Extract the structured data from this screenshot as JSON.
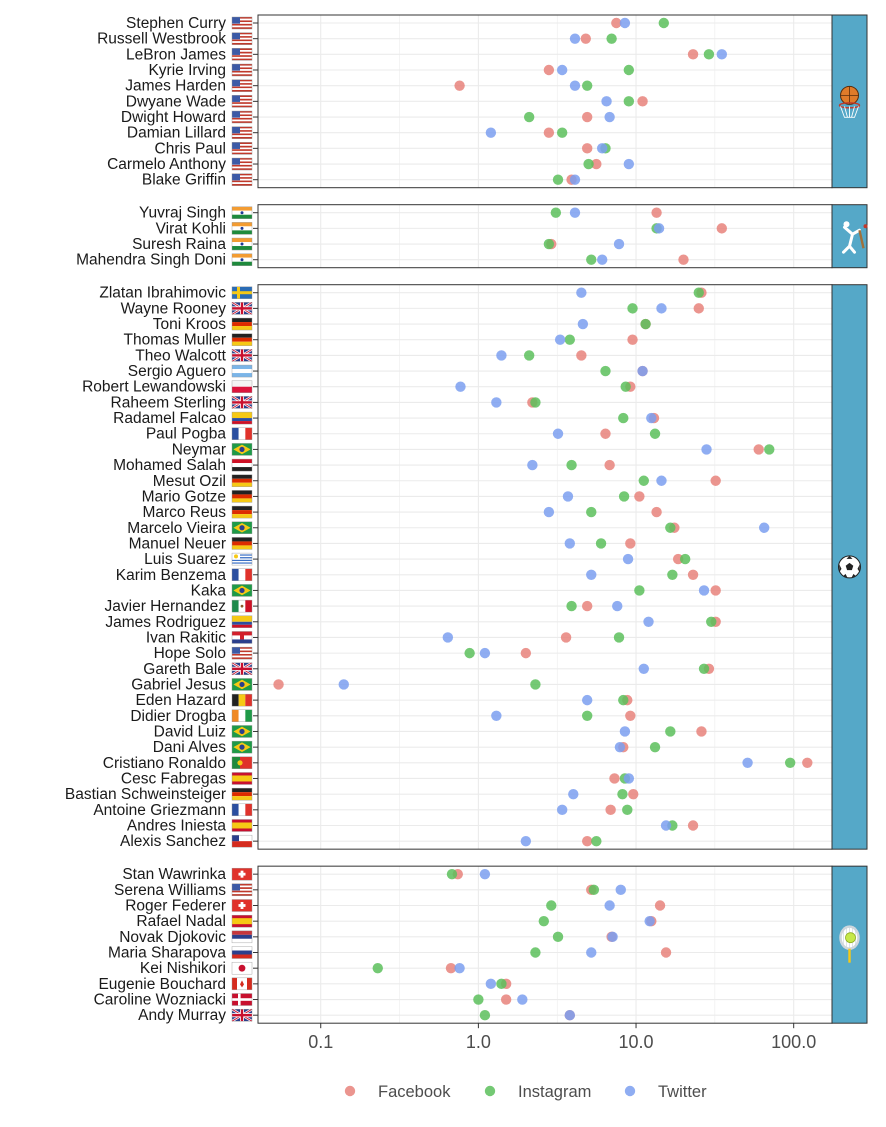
{
  "chart_data": {
    "type": "scatter",
    "x_scale": "log",
    "x_range": [
      0.04,
      175
    ],
    "x_ticks": [
      {
        "value": 0.1,
        "label": "0.1"
      },
      {
        "value": 1,
        "label": "1.0"
      },
      {
        "value": 10,
        "label": "10.0"
      },
      {
        "value": 100,
        "label": "100.0"
      }
    ],
    "legend_position": "bottom",
    "grid": true,
    "series": [
      {
        "name": "Facebook",
        "color": "#e8837b"
      },
      {
        "name": "Instagram",
        "color": "#5cbf5c"
      },
      {
        "name": "Twitter",
        "color": "#7b9ff0"
      }
    ],
    "panels": [
      {
        "sport": "basketball",
        "strip_icon": "basketball-icon",
        "athletes": [
          {
            "name": "Stephen Curry",
            "flag": "us",
            "values": [
              7.5,
              15,
              8.5
            ]
          },
          {
            "name": "Russell Westbrook",
            "flag": "us",
            "values": [
              4.8,
              7,
              4.1
            ]
          },
          {
            "name": "LeBron James",
            "flag": "us",
            "values": [
              23,
              29,
              35
            ]
          },
          {
            "name": "Kyrie Irving",
            "flag": "us",
            "values": [
              2.8,
              9,
              3.4
            ]
          },
          {
            "name": "James Harden",
            "flag": "us",
            "values": [
              0.76,
              4.9,
              4.1
            ]
          },
          {
            "name": "Dwyane Wade",
            "flag": "us",
            "values": [
              11,
              9,
              6.5
            ]
          },
          {
            "name": "Dwight Howard",
            "flag": "us",
            "values": [
              4.9,
              2.1,
              6.8
            ]
          },
          {
            "name": "Damian Lillard",
            "flag": "us",
            "values": [
              2.8,
              3.4,
              1.2
            ]
          },
          {
            "name": "Chris Paul",
            "flag": "us",
            "values": [
              4.9,
              6.4,
              6.1
            ]
          },
          {
            "name": "Carmelo Anthony",
            "flag": "us",
            "values": [
              5.6,
              5.0,
              9.0
            ]
          },
          {
            "name": "Blake Griffin",
            "flag": "us",
            "values": [
              3.9,
              3.2,
              4.1
            ]
          }
        ]
      },
      {
        "sport": "cricket",
        "strip_icon": "cricket-icon",
        "athletes": [
          {
            "name": "Yuvraj Singh",
            "flag": "in",
            "values": [
              13.5,
              3.1,
              4.1
            ]
          },
          {
            "name": "Virat Kohli",
            "flag": "in",
            "values": [
              35,
              13.5,
              14
            ]
          },
          {
            "name": "Suresh Raina",
            "flag": "in",
            "values": [
              2.9,
              2.8,
              7.8
            ]
          },
          {
            "name": "Mahendra Singh Doni",
            "flag": "in",
            "values": [
              20,
              5.2,
              6.1
            ]
          }
        ]
      },
      {
        "sport": "soccer",
        "strip_icon": "soccer-ball-icon",
        "athletes": [
          {
            "name": "Zlatan Ibrahimovic",
            "flag": "se",
            "values": [
              26,
              25,
              4.5
            ]
          },
          {
            "name": "Wayne Rooney",
            "flag": "gb",
            "values": [
              25,
              9.5,
              14.5
            ]
          },
          {
            "name": "Toni Kroos",
            "flag": "de",
            "values": [
              11.5,
              11.5,
              4.6
            ]
          },
          {
            "name": "Thomas Muller",
            "flag": "de",
            "values": [
              9.5,
              3.8,
              3.3
            ]
          },
          {
            "name": "Theo Walcott",
            "flag": "gb",
            "values": [
              4.5,
              2.1,
              1.4
            ]
          },
          {
            "name": "Sergio Aguero",
            "flag": "ar",
            "values": [
              11,
              6.4,
              11
            ]
          },
          {
            "name": "Robert Lewandowski",
            "flag": "pl",
            "values": [
              9.2,
              8.6,
              0.77
            ]
          },
          {
            "name": "Raheem Sterling",
            "flag": "gb",
            "values": [
              2.2,
              2.3,
              1.3
            ]
          },
          {
            "name": "Radamel Falcao",
            "flag": "co",
            "values": [
              13,
              8.3,
              12.5
            ]
          },
          {
            "name": "Paul Pogba",
            "flag": "fr",
            "values": [
              6.4,
              13.2,
              3.2
            ]
          },
          {
            "name": "Neymar",
            "flag": "br",
            "values": [
              60,
              70,
              28
            ]
          },
          {
            "name": "Mohamed Salah",
            "flag": "eg",
            "values": [
              6.8,
              3.9,
              2.2
            ]
          },
          {
            "name": "Mesut Ozil",
            "flag": "de",
            "values": [
              32,
              11.2,
              14.5
            ]
          },
          {
            "name": "Mario Gotze",
            "flag": "de",
            "values": [
              10.5,
              8.4,
              3.7
            ]
          },
          {
            "name": "Marco Reus",
            "flag": "de",
            "values": [
              13.5,
              5.2,
              2.8
            ]
          },
          {
            "name": "Marcelo Vieira",
            "flag": "br",
            "values": [
              17.5,
              16.5,
              65
            ]
          },
          {
            "name": "Manuel Neuer",
            "flag": "de",
            "values": [
              9.2,
              6,
              3.8
            ]
          },
          {
            "name": "Luis Suarez",
            "flag": "uy",
            "values": [
              18.5,
              20.5,
              8.9
            ]
          },
          {
            "name": "Karim Benzema",
            "flag": "fr",
            "values": [
              23,
              17,
              5.2
            ]
          },
          {
            "name": "Kaka",
            "flag": "br",
            "values": [
              32,
              10.5,
              27
            ]
          },
          {
            "name": "Javier Hernandez",
            "flag": "mx",
            "values": [
              4.9,
              3.9,
              7.6
            ]
          },
          {
            "name": "James Rodriguez",
            "flag": "co",
            "values": [
              32,
              30,
              12
            ]
          },
          {
            "name": "Ivan Rakitic",
            "flag": "hr",
            "values": [
              3.6,
              7.8,
              0.64
            ]
          },
          {
            "name": "Hope Solo",
            "flag": "us",
            "values": [
              2.0,
              0.88,
              1.1
            ]
          },
          {
            "name": "Gareth Bale",
            "flag": "gb",
            "values": [
              29,
              27,
              11.2
            ]
          },
          {
            "name": "Gabriel Jesus",
            "flag": "br",
            "values": [
              0.054,
              2.3,
              0.14
            ]
          },
          {
            "name": "Eden Hazard",
            "flag": "be",
            "values": [
              8.8,
              8.3,
              4.9
            ]
          },
          {
            "name": "Didier Drogba",
            "flag": "ci",
            "values": [
              9.2,
              4.9,
              1.3
            ]
          },
          {
            "name": "David Luiz",
            "flag": "br",
            "values": [
              26,
              16.5,
              8.5
            ]
          },
          {
            "name": "Dani Alves",
            "flag": "br",
            "values": [
              8.3,
              13.2,
              7.9
            ]
          },
          {
            "name": "Cristiano Ronaldo",
            "flag": "pt",
            "values": [
              122,
              95,
              51
            ]
          },
          {
            "name": "Cesc Fabregas",
            "flag": "es",
            "values": [
              7.3,
              8.5,
              9.0
            ]
          },
          {
            "name": "Bastian Schweinsteiger",
            "flag": "de",
            "values": [
              9.6,
              8.2,
              4.0
            ]
          },
          {
            "name": "Antoine Griezmann",
            "flag": "fr",
            "values": [
              6.9,
              8.8,
              3.4
            ]
          },
          {
            "name": "Andres Iniesta",
            "flag": "es",
            "values": [
              23,
              17,
              15.5
            ]
          },
          {
            "name": "Alexis Sanchez",
            "flag": "cl",
            "values": [
              4.9,
              5.6,
              2.0
            ]
          }
        ]
      },
      {
        "sport": "tennis",
        "strip_icon": "tennis-racket-icon",
        "athletes": [
          {
            "name": "Stan Wawrinka",
            "flag": "ch",
            "values": [
              0.74,
              0.68,
              1.1
            ]
          },
          {
            "name": "Serena Williams",
            "flag": "us",
            "values": [
              5.2,
              5.4,
              8.0
            ]
          },
          {
            "name": "Roger Federer",
            "flag": "ch",
            "values": [
              14.2,
              2.9,
              6.8
            ]
          },
          {
            "name": "Rafael Nadal",
            "flag": "es",
            "values": [
              12.5,
              2.6,
              12.2
            ]
          },
          {
            "name": "Novak Djokovic",
            "flag": "rs",
            "values": [
              7.0,
              3.2,
              7.1
            ]
          },
          {
            "name": "Maria Sharapova",
            "flag": "ru",
            "values": [
              15.5,
              2.3,
              5.2
            ]
          },
          {
            "name": "Kei Nishikori",
            "flag": "jp",
            "values": [
              0.67,
              0.23,
              0.76
            ]
          },
          {
            "name": "Eugenie Bouchard",
            "flag": "ca",
            "values": [
              1.5,
              1.4,
              1.2
            ]
          },
          {
            "name": "Caroline Wozniacki",
            "flag": "dk",
            "values": [
              1.5,
              1.0,
              1.9
            ]
          },
          {
            "name": "Andy Murray",
            "flag": "gb",
            "values": [
              3.8,
              1.1,
              3.8
            ]
          }
        ]
      }
    ]
  }
}
